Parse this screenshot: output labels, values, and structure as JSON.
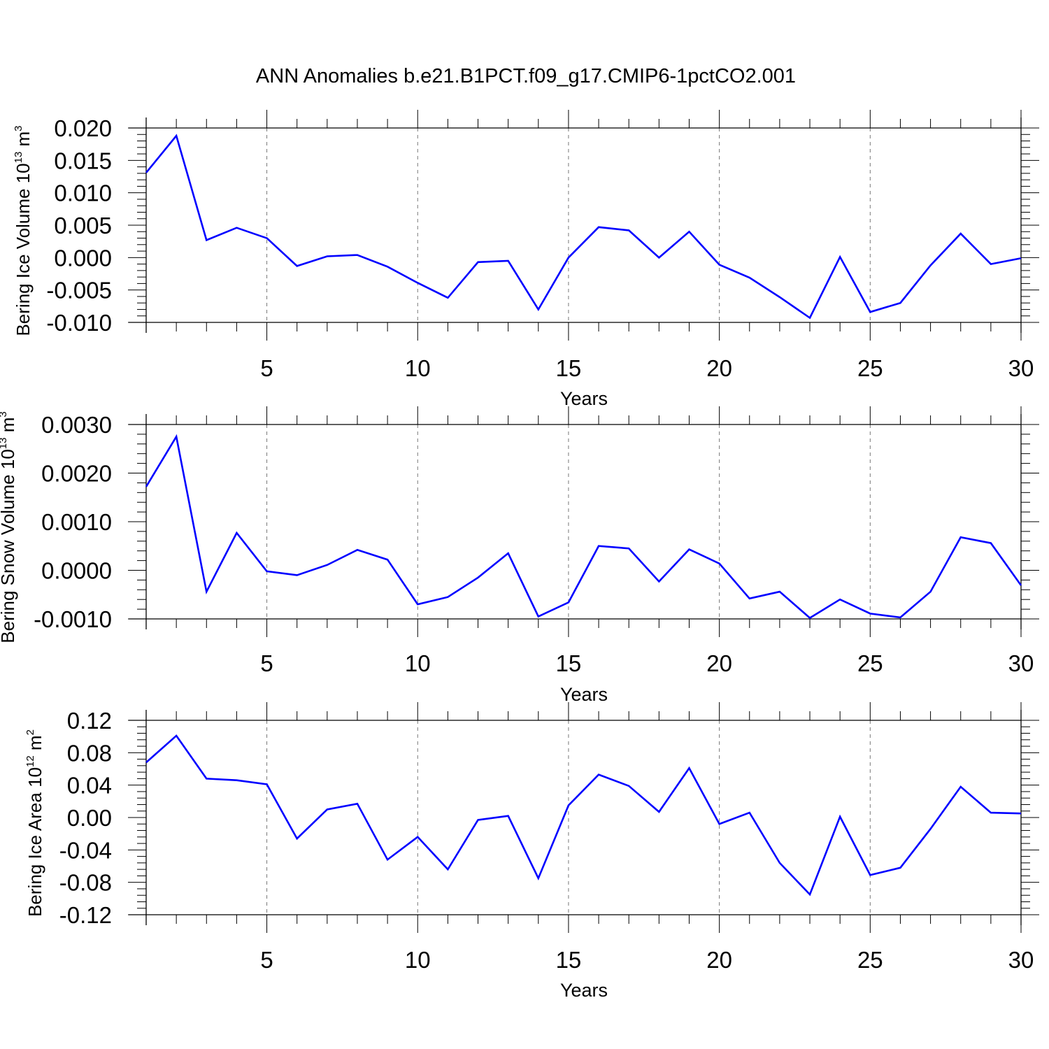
{
  "title": "ANN Anomalies b.e21.B1PCT.f09_g17.CMIP6-1pctCO2.001",
  "colors": {
    "line": "#0000ff",
    "axis": "#000000",
    "grid": "#777777"
  },
  "chart_data": [
    {
      "type": "line",
      "ylabel": {
        "prefix": "Bering Ice Volume 10",
        "exponent": "13",
        "unit": " m",
        "unit_exp": "3"
      },
      "xlabel": "Years",
      "xlim": [
        1,
        30
      ],
      "xticks": [
        5,
        10,
        15,
        20,
        25,
        30
      ],
      "ylim": [
        -0.01,
        0.02
      ],
      "yticks": [
        -0.01,
        -0.005,
        0.0,
        0.005,
        0.01,
        0.015,
        0.02
      ],
      "ytick_labels": [
        "-0.010",
        "-0.005",
        "0.000",
        "0.005",
        "0.010",
        "0.015",
        "0.020"
      ],
      "x": [
        1,
        2,
        3,
        4,
        5,
        6,
        7,
        8,
        9,
        10,
        11,
        12,
        13,
        14,
        15,
        16,
        17,
        18,
        19,
        20,
        21,
        22,
        23,
        24,
        25,
        26,
        27,
        28,
        29,
        30
      ],
      "series": [
        {
          "name": "Bering Ice Volume",
          "values": [
            0.0131,
            0.0188,
            0.0027,
            0.0046,
            0.003,
            -0.0013,
            0.0002,
            0.0004,
            -0.0014,
            -0.0039,
            -0.0062,
            -0.0007,
            -0.0005,
            -0.008,
            0.0,
            0.0047,
            0.0042,
            0.0,
            0.004,
            -0.0011,
            -0.0031,
            -0.0061,
            -0.0093,
            0.0001,
            -0.0084,
            -0.007,
            -0.0012,
            0.0037,
            -0.001,
            -0.0001
          ]
        }
      ]
    },
    {
      "type": "line",
      "ylabel": {
        "prefix": "Bering Snow Volume 10",
        "exponent": "13",
        "unit": " m",
        "unit_exp": "3"
      },
      "xlabel": "Years",
      "xlim": [
        1,
        30
      ],
      "xticks": [
        5,
        10,
        15,
        20,
        25,
        30
      ],
      "ylim": [
        -0.001,
        0.003
      ],
      "yticks": [
        -0.001,
        0.0,
        0.001,
        0.002,
        0.003
      ],
      "ytick_labels": [
        "-0.0010",
        "0.0000",
        "0.0010",
        "0.0020",
        "0.0030"
      ],
      "x": [
        1,
        2,
        3,
        4,
        5,
        6,
        7,
        8,
        9,
        10,
        11,
        12,
        13,
        14,
        15,
        16,
        17,
        18,
        19,
        20,
        21,
        22,
        23,
        24,
        25,
        26,
        27,
        28,
        29,
        30
      ],
      "series": [
        {
          "name": "Bering Snow Volume",
          "values": [
            0.00172,
            0.00275,
            -0.00044,
            0.00077,
            -2e-05,
            -0.0001,
            0.00011,
            0.00042,
            0.00022,
            -0.0007,
            -0.00055,
            -0.00015,
            0.00035,
            -0.00095,
            -0.00066,
            0.0005,
            0.00045,
            -0.00023,
            0.00043,
            0.00014,
            -0.00058,
            -0.00044,
            -0.00098,
            -0.0006,
            -0.00089,
            -0.00097,
            -0.00044,
            0.00068,
            0.00056,
            -0.00031
          ]
        }
      ]
    },
    {
      "type": "line",
      "ylabel": {
        "prefix": "Bering Ice Area 10",
        "exponent": "12",
        "unit": " m",
        "unit_exp": "2"
      },
      "xlabel": "Years",
      "xlim": [
        1,
        30
      ],
      "xticks": [
        5,
        10,
        15,
        20,
        25,
        30
      ],
      "ylim": [
        -0.12,
        0.12
      ],
      "yticks": [
        -0.12,
        -0.08,
        -0.04,
        0.0,
        0.04,
        0.08,
        0.12
      ],
      "ytick_labels": [
        "-0.12",
        "-0.08",
        "-0.04",
        "0.00",
        "0.04",
        "0.08",
        "0.12"
      ],
      "x": [
        1,
        2,
        3,
        4,
        5,
        6,
        7,
        8,
        9,
        10,
        11,
        12,
        13,
        14,
        15,
        16,
        17,
        18,
        19,
        20,
        21,
        22,
        23,
        24,
        25,
        26,
        27,
        28,
        29,
        30
      ],
      "series": [
        {
          "name": "Bering Ice Area",
          "values": [
            0.068,
            0.101,
            0.048,
            0.046,
            0.041,
            -0.026,
            0.01,
            0.017,
            -0.052,
            -0.024,
            -0.064,
            -0.003,
            0.002,
            -0.075,
            0.015,
            0.053,
            0.039,
            0.007,
            0.061,
            -0.008,
            0.006,
            -0.056,
            -0.095,
            0.001,
            -0.071,
            -0.062,
            -0.014,
            0.038,
            0.006,
            0.005
          ]
        }
      ]
    }
  ]
}
